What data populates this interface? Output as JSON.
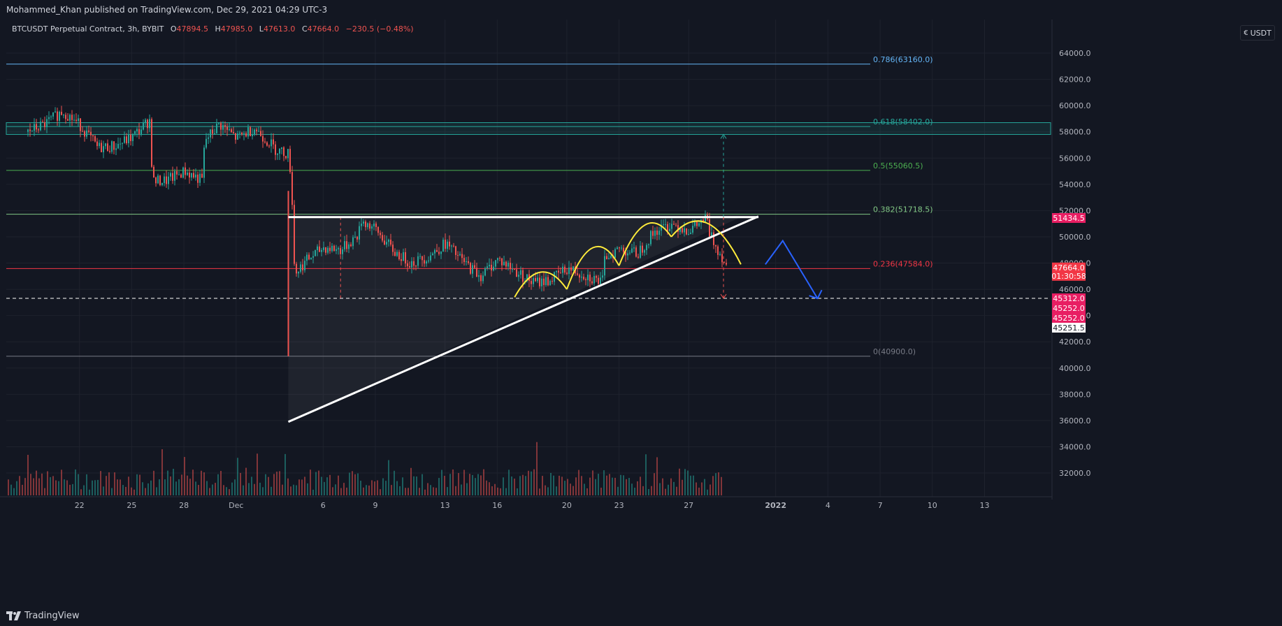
{
  "header": {
    "published_line": "Mohammed_Khan published on TradingView.com, Dec 29, 2021 04:29 UTC-3"
  },
  "legend": {
    "symbol": "BTCUSDT Perpetual Contract, 3h, BYBIT",
    "o_label": "O",
    "o_value": "47894.5",
    "h_label": "H",
    "h_value": "47985.0",
    "l_label": "L",
    "l_value": "47613.0",
    "c_label": "C",
    "c_value": "47664.0",
    "change": "−230.5 (−0.48%)"
  },
  "scale_button": {
    "icon": "lock-icon",
    "label": "USDT"
  },
  "footer": {
    "brand": "TradingView"
  },
  "colors": {
    "background": "#131722",
    "grid": "#1e222d",
    "up": "#26a69a",
    "down": "#ef5350",
    "fib_786": "#64b5f6",
    "fib_618": "#26a69a",
    "fib_5": "#4caf50",
    "fib_382": "#81c784",
    "fib_236": "#f23645",
    "fib_0": "#787b86",
    "trendline": "#ffffff",
    "arcs": "#ffeb3b",
    "projection": "#2962ff",
    "price_badge": "#f23645",
    "level_badge": "#e91e63"
  },
  "chart_data": {
    "type": "candlestick",
    "symbol": "BTCUSDT Perpetual Contract",
    "interval": "3h",
    "exchange": "BYBIT",
    "ylim": [
      30500,
      66500
    ],
    "y_ticks": [
      "64000.0",
      "62000.0",
      "60000.0",
      "58000.0",
      "56000.0",
      "54000.0",
      "52000.0",
      "50000.0",
      "48000.0",
      "46000.0",
      "44000.0",
      "42000.0",
      "40000.0",
      "38000.0",
      "36000.0",
      "34000.0",
      "32000.0"
    ],
    "x_ticks": [
      {
        "label": "22",
        "date": "2021-11-22"
      },
      {
        "label": "25",
        "date": "2021-11-25"
      },
      {
        "label": "28",
        "date": "2021-11-28"
      },
      {
        "label": "Dec",
        "date": "2021-12-01"
      },
      {
        "label": "6",
        "date": "2021-12-06"
      },
      {
        "label": "9",
        "date": "2021-12-09"
      },
      {
        "label": "13",
        "date": "2021-12-13"
      },
      {
        "label": "16",
        "date": "2021-12-16"
      },
      {
        "label": "20",
        "date": "2021-12-20"
      },
      {
        "label": "23",
        "date": "2021-12-23"
      },
      {
        "label": "27",
        "date": "2021-12-27"
      },
      {
        "label": "2022",
        "date": "2022-01-01"
      },
      {
        "label": "4",
        "date": "2022-01-04"
      },
      {
        "label": "7",
        "date": "2022-01-07"
      },
      {
        "label": "10",
        "date": "2022-01-10"
      },
      {
        "label": "13",
        "date": "2022-01-13"
      }
    ],
    "x_range": [
      "2021-11-19",
      "2022-01-18"
    ],
    "price_path": [
      [
        "2021-11-19",
        58000
      ],
      [
        "2021-11-20",
        58600
      ],
      [
        "2021-11-21",
        59600
      ],
      [
        "2021-11-22",
        58500
      ],
      [
        "2021-11-23",
        56800
      ],
      [
        "2021-11-24",
        56900
      ],
      [
        "2021-11-25",
        57600
      ],
      [
        "2021-11-26",
        58900
      ],
      [
        "2021-11-26",
        54200
      ],
      [
        "2021-11-27",
        54300
      ],
      [
        "2021-11-28",
        55000
      ],
      [
        "2021-11-29",
        54300
      ],
      [
        "2021-11-29",
        57300
      ],
      [
        "2021-11-30",
        58600
      ],
      [
        "2021-12-01",
        57500
      ],
      [
        "2021-12-02",
        58300
      ],
      [
        "2021-12-03",
        57000
      ],
      [
        "2021-12-03",
        56700
      ],
      [
        "2021-12-04",
        56300
      ],
      [
        "2021-12-04",
        53500
      ],
      [
        "2021-12-04",
        47200
      ],
      [
        "2021-12-05",
        48200
      ],
      [
        "2021-12-06",
        49200
      ],
      [
        "2021-12-07",
        49000
      ],
      [
        "2021-12-08",
        50200
      ],
      [
        "2021-12-08",
        51300
      ],
      [
        "2021-12-09",
        50500
      ],
      [
        "2021-12-10",
        48900
      ],
      [
        "2021-12-11",
        48000
      ],
      [
        "2021-12-12",
        48500
      ],
      [
        "2021-12-13",
        49500
      ],
      [
        "2021-12-14",
        48100
      ],
      [
        "2021-12-15",
        47000
      ],
      [
        "2021-12-16",
        48300
      ],
      [
        "2021-12-17",
        47400
      ],
      [
        "2021-12-18",
        46500
      ],
      [
        "2021-12-19",
        46700
      ],
      [
        "2021-12-20",
        47600
      ],
      [
        "2021-12-21",
        47100
      ],
      [
        "2021-12-22",
        46500
      ],
      [
        "2021-12-22",
        48500
      ],
      [
        "2021-12-23",
        49100
      ],
      [
        "2021-12-24",
        48700
      ],
      [
        "2021-12-25",
        50400
      ],
      [
        "2021-12-26",
        51000
      ],
      [
        "2021-12-27",
        50500
      ],
      [
        "2021-12-28",
        51400
      ],
      [
        "2021-12-28",
        50200
      ],
      [
        "2021-12-29",
        48200
      ],
      [
        "2021-12-29",
        47664
      ]
    ],
    "spike_low": {
      "date": "2021-12-04",
      "value": 40900
    },
    "volume_note": "relative volume bars along bottom",
    "fibonacci": [
      {
        "label": "0.786(63160.0)",
        "ratio": "0.786",
        "value": 63160.0
      },
      {
        "label": "0.618(58402.0)",
        "ratio": "0.618",
        "value": 58402.0
      },
      {
        "label": "0.5(55060.5)",
        "ratio": "0.5",
        "value": 55060.5
      },
      {
        "label": "0.382(51718.5)",
        "ratio": "0.382",
        "value": 51718.5
      },
      {
        "label": "0.236(47584.0)",
        "ratio": "0.236",
        "value": 47584.0
      },
      {
        "label": "0(40900.0)",
        "ratio": "0",
        "value": 40900.0
      }
    ],
    "resistance_zone": [
      57800,
      58700
    ],
    "dashed_support": 45312.0,
    "trendlines": [
      {
        "name": "resistance",
        "from": [
          "2021-12-04",
          51500
        ],
        "to": [
          "2021-12-30",
          51500
        ]
      },
      {
        "name": "ascending",
        "from": [
          "2021-12-04",
          35900
        ],
        "to": [
          "2021-12-30",
          51500
        ]
      }
    ],
    "target_arrow": {
      "date": "2021-12-29",
      "from": 51500,
      "up_to": 57800,
      "down_to": 45312
    },
    "projection_path": [
      [
        "2021-12-30",
        47900
      ],
      [
        "2021-12-31",
        49700
      ],
      [
        "2022-01-02",
        45300
      ]
    ],
    "price_labels": [
      {
        "text": "51434.5",
        "value": 51434.5,
        "color": "#e91e63"
      },
      {
        "text": "47664.0",
        "sub": "01:30:58",
        "value": 47664.0,
        "color": "#f23645"
      },
      {
        "text": "45312.0",
        "value": 45312.0,
        "color": "#e91e63"
      },
      {
        "text": "45252.0",
        "value": 45252.0,
        "color": "#e91e63"
      },
      {
        "text": "45252.0",
        "value": 45252.0,
        "color": "#e91e63"
      },
      {
        "text": "45251.5",
        "value": 45251.5,
        "color": "#ffffff"
      }
    ]
  }
}
